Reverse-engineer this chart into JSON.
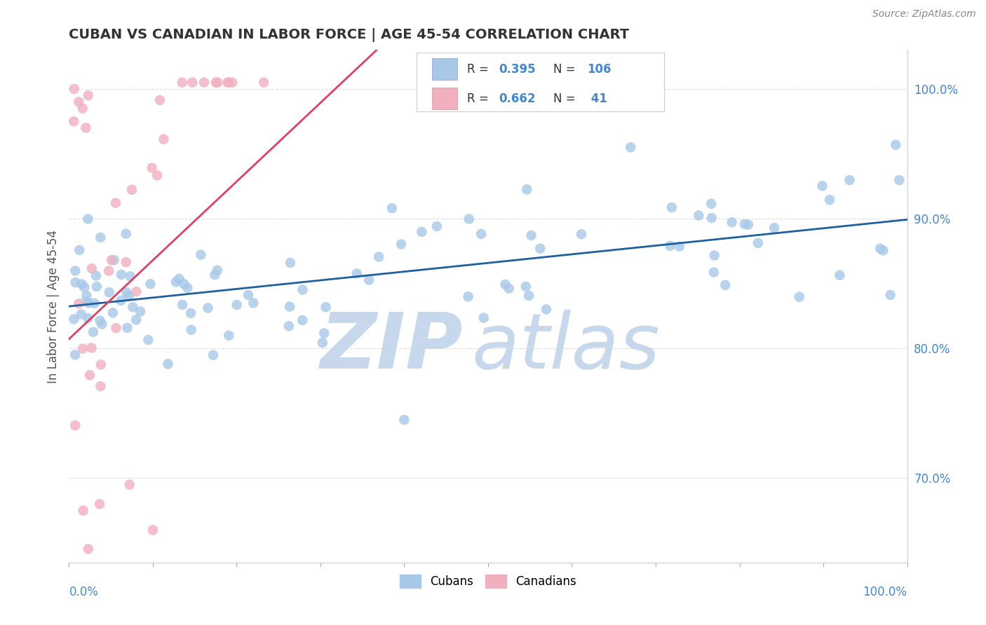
{
  "title": "CUBAN VS CANADIAN IN LABOR FORCE | AGE 45-54 CORRELATION CHART",
  "source": "Source: ZipAtlas.com",
  "ylabel": "In Labor Force | Age 45-54",
  "xlim": [
    0.0,
    1.0
  ],
  "ylim": [
    0.635,
    1.03
  ],
  "yticks": [
    0.7,
    0.8,
    0.9,
    1.0
  ],
  "ytick_labels": [
    "70.0%",
    "80.0%",
    "90.0%",
    "100.0%"
  ],
  "xtick_labels_show": [
    "0.0%",
    "100.0%"
  ],
  "cubans_color": "#a8c8e8",
  "cubans_line_color": "#2060a0",
  "canadians_color": "#f0b0c0",
  "canadians_line_color": "#e04060",
  "R_cubans": "0.395",
  "N_cubans": "106",
  "R_canadians": "0.662",
  "N_canadians": "41",
  "watermark_zip_color": "#c8d8ec",
  "watermark_atlas_color": "#c8d8ec",
  "grid_color": "#dddddd",
  "background": "#ffffff",
  "title_color": "#333333",
  "source_color": "#888888",
  "ytick_color": "#4488cc"
}
